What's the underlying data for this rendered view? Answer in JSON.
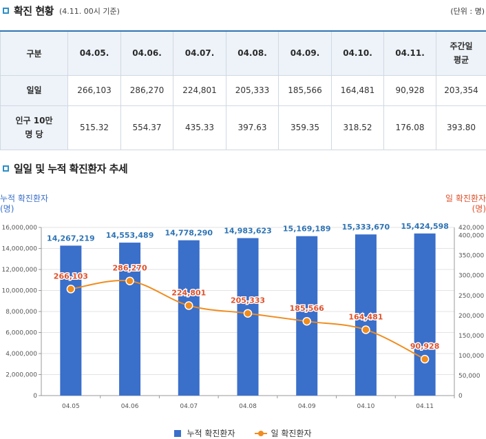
{
  "section1": {
    "title": "확진 현황",
    "subtitle": "(4.11. 00시 기준)",
    "unit": "(단위 : 명)"
  },
  "table": {
    "headers": [
      "구분",
      "04.05.",
      "04.06.",
      "04.07.",
      "04.08.",
      "04.09.",
      "04.10.",
      "04.11."
    ],
    "avg_header_line1": "주간일",
    "avg_header_line2": "평균",
    "row1": {
      "label": "일일",
      "values": [
        "266,103",
        "286,270",
        "224,801",
        "205,333",
        "185,566",
        "164,481",
        "90,928",
        "203,354"
      ]
    },
    "row2": {
      "label_line1": "인구 10만",
      "label_line2": "명 당",
      "values": [
        "515.32",
        "554.37",
        "435.33",
        "397.63",
        "359.35",
        "318.52",
        "176.08",
        "393.80"
      ]
    }
  },
  "section2": {
    "title": "일일 및 누적 확진환자 추세"
  },
  "colors": {
    "bar": "#3a6fca",
    "line": "#f08c1e",
    "bar_label": "#2e74b5",
    "line_label": "#e0502a",
    "left_axis_title": "#3a6fca",
    "right_axis_title": "#e0502a"
  },
  "chart_data": {
    "type": "bar",
    "categories": [
      "04.05",
      "04.06",
      "04.07",
      "04.08",
      "04.09",
      "04.10",
      "04.11"
    ],
    "series": [
      {
        "name": "누적 확진환자",
        "type": "bar",
        "axis": "left",
        "values": [
          14267219,
          14553489,
          14778290,
          14983623,
          15169189,
          15333670,
          15424598
        ],
        "labels": [
          "14,267,219",
          "14,553,489",
          "14,778,290",
          "14,983,623",
          "15,169,189",
          "15,333,670",
          "15,424,598"
        ]
      },
      {
        "name": "일 확진환자",
        "type": "line",
        "axis": "right",
        "values": [
          266103,
          286270,
          224801,
          205333,
          185566,
          164481,
          90928
        ],
        "labels": [
          "266,103",
          "286,270",
          "224,801",
          "205,333",
          "185,566",
          "164,481",
          "90,928"
        ]
      }
    ],
    "y_left": {
      "label_line1": "누적 확진환자",
      "label_line2": "(명)",
      "range": [
        0,
        16000000
      ],
      "ticks": [
        "16,000,000",
        "14,000,000",
        "12,000,000",
        "10,000,000",
        "8,000,000",
        "6,000,000",
        "4,000,000",
        "2,000,000",
        "0"
      ],
      "tick_values": [
        16000000,
        14000000,
        12000000,
        10000000,
        8000000,
        6000000,
        4000000,
        2000000,
        0
      ]
    },
    "y_right": {
      "label_line1": "일 확진환자",
      "label_line2": "(명)",
      "range": [
        0,
        420000
      ],
      "ticks": [
        "420,000",
        "400,000",
        "350,000",
        "300,000",
        "250,000",
        "200,000",
        "150,000",
        "100,000",
        "50,000",
        "0"
      ],
      "tick_values": [
        420000,
        400000,
        350000,
        300000,
        250000,
        200000,
        150000,
        100000,
        50000,
        0
      ]
    },
    "grid": true,
    "legend": "bottom-center"
  }
}
